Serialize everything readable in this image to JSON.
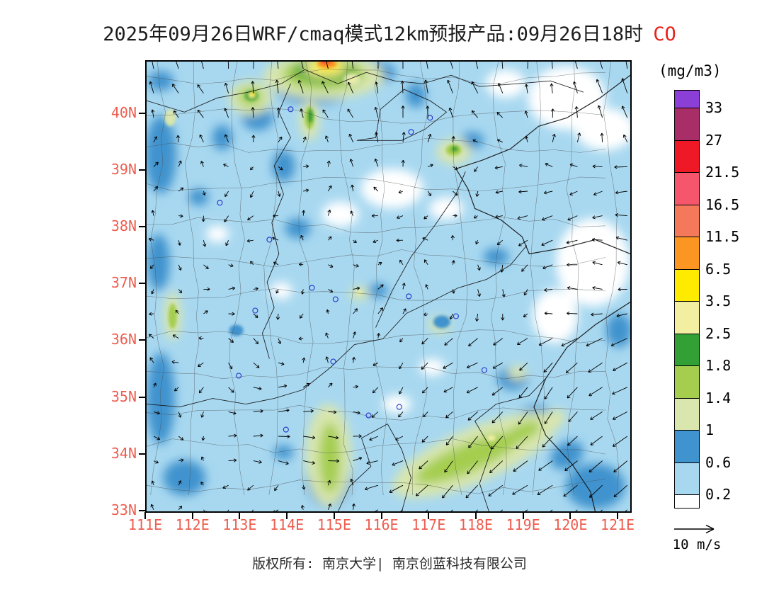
{
  "title": {
    "prefix": "2025年09月26日WRF/cmaq模式12km预报产品:09月26日18时",
    "pollutant": "CO"
  },
  "map": {
    "lat_labels": [
      "40N",
      "39N",
      "38N",
      "37N",
      "36N",
      "35N",
      "34N",
      "33N"
    ],
    "lon_labels": [
      "111E",
      "112E",
      "113E",
      "114E",
      "115E",
      "116E",
      "117E",
      "118E",
      "119E",
      "120E",
      "121E"
    ],
    "axis_label_color": "#ee5d4f"
  },
  "colorbar": {
    "unit": "(mg/m3)",
    "tick_labels": [
      "33",
      "27",
      "21.5",
      "16.5",
      "11.5",
      "6.5",
      "3.5",
      "2.5",
      "1.8",
      "1.4",
      "1",
      "0.6",
      "0.2"
    ],
    "colors_top_to_bottom": [
      "#8c3fd6",
      "#a92d66",
      "#ef1826",
      "#f5566b",
      "#f4795b",
      "#fb9623",
      "#ffeb00",
      "#f3efa2",
      "#33a036",
      "#a5ce4f",
      "#d9e6ae",
      "#3f93ce",
      "#a8d8f0",
      "#ffffff"
    ]
  },
  "wind_legend": {
    "label": "10 m/s"
  },
  "footer": {
    "text": "版权所有: 南京大学| 南京创蓝科技有限公司"
  }
}
